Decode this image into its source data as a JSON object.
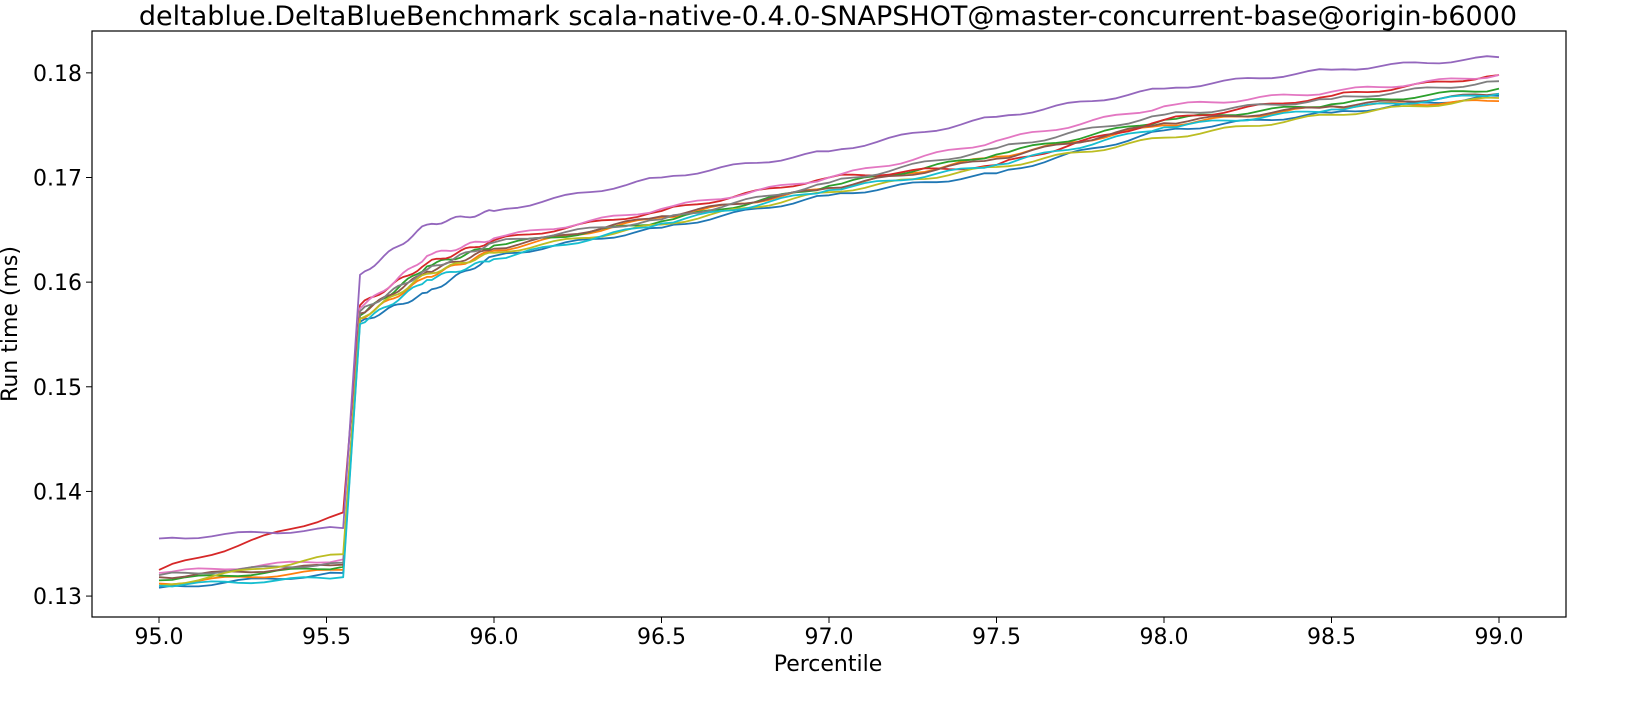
{
  "chart_data": {
    "type": "line",
    "title": "deltablue.DeltaBlueBenchmark scala-native-0.4.0-SNAPSHOT@master-concurrent-base@origin-b6000",
    "xlabel": "Percentile",
    "ylabel": "Run time (ms)",
    "xlim": [
      94.8,
      99.2
    ],
    "ylim": [
      0.128,
      0.184
    ],
    "xticks": [
      95.0,
      95.5,
      96.0,
      96.5,
      97.0,
      97.5,
      98.0,
      98.5,
      99.0
    ],
    "xtick_labels": [
      "95.0",
      "95.5",
      "96.0",
      "96.5",
      "97.0",
      "97.5",
      "98.0",
      "98.5",
      "99.0"
    ],
    "yticks": [
      0.13,
      0.14,
      0.15,
      0.16,
      0.17,
      0.18
    ],
    "ytick_labels": [
      "0.13",
      "0.14",
      "0.15",
      "0.16",
      "0.17",
      "0.18"
    ],
    "grid": false,
    "legend": false,
    "x": [
      95.0,
      95.55,
      95.6,
      95.8,
      96.0,
      96.5,
      97.0,
      97.5,
      98.0,
      98.5,
      99.0
    ],
    "series": [
      {
        "color": "#1f77b4",
        "values": [
          0.1308,
          0.1322,
          0.1562,
          0.159,
          0.1625,
          0.1652,
          0.1683,
          0.1704,
          0.1745,
          0.1762,
          0.1778
        ]
      },
      {
        "color": "#ff7f0e",
        "values": [
          0.1312,
          0.1325,
          0.1565,
          0.1605,
          0.163,
          0.1662,
          0.169,
          0.172,
          0.175,
          0.1768,
          0.1773
        ]
      },
      {
        "color": "#2ca02c",
        "values": [
          0.1315,
          0.1328,
          0.1568,
          0.1615,
          0.1635,
          0.1658,
          0.1692,
          0.1722,
          0.1755,
          0.177,
          0.1785
        ]
      },
      {
        "color": "#d62728",
        "values": [
          0.1325,
          0.138,
          0.1578,
          0.1618,
          0.164,
          0.1668,
          0.17,
          0.1712,
          0.1755,
          0.1778,
          0.1798
        ]
      },
      {
        "color": "#9467bd",
        "values": [
          0.1355,
          0.1365,
          0.1607,
          0.1655,
          0.1668,
          0.17,
          0.1725,
          0.1758,
          0.1785,
          0.1803,
          0.1815
        ]
      },
      {
        "color": "#8c564b",
        "values": [
          0.1318,
          0.133,
          0.157,
          0.161,
          0.1632,
          0.1663,
          0.169,
          0.1718,
          0.1752,
          0.1768,
          0.178
        ]
      },
      {
        "color": "#e377c2",
        "values": [
          0.1322,
          0.1335,
          0.1575,
          0.1625,
          0.1642,
          0.167,
          0.17,
          0.1735,
          0.1768,
          0.1782,
          0.1798
        ]
      },
      {
        "color": "#7f7f7f",
        "values": [
          0.132,
          0.1332,
          0.1572,
          0.1612,
          0.1638,
          0.166,
          0.1695,
          0.1728,
          0.176,
          0.1775,
          0.1792
        ]
      },
      {
        "color": "#bcbd22",
        "values": [
          0.131,
          0.134,
          0.1565,
          0.1608,
          0.1628,
          0.1655,
          0.1686,
          0.171,
          0.1738,
          0.176,
          0.1776
        ]
      },
      {
        "color": "#17becf",
        "values": [
          0.131,
          0.1318,
          0.156,
          0.1602,
          0.1622,
          0.1656,
          0.1688,
          0.1712,
          0.1748,
          0.1765,
          0.178
        ]
      }
    ]
  }
}
